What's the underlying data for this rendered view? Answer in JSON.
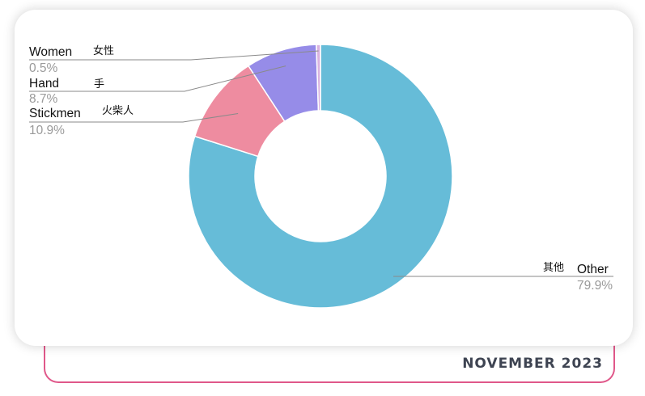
{
  "footer": {
    "date": "NOVEMBER 2023"
  },
  "chart_data": {
    "type": "pie",
    "donut": true,
    "colors": {
      "Other": "#66bcd8",
      "Stickmen": "#ee8ca0",
      "Hand": "#968ce8",
      "Women": "#d9b3e0"
    },
    "slices": [
      {
        "label": "Women",
        "label_cn": "女性",
        "value": 0.5,
        "pct_text": "0.5%"
      },
      {
        "label": "Hand",
        "label_cn": "手",
        "value": 8.7,
        "pct_text": "8.7%"
      },
      {
        "label": "Stickmen",
        "label_cn": "火柴人",
        "value": 10.9,
        "pct_text": "10.9%"
      },
      {
        "label": "Other",
        "label_cn": "其他",
        "value": 79.9,
        "pct_text": "79.9%"
      }
    ],
    "slice_order_clockwise_from_top": [
      "Other",
      "Stickmen",
      "Hand",
      "Women"
    ],
    "legend": "callout-labels"
  }
}
